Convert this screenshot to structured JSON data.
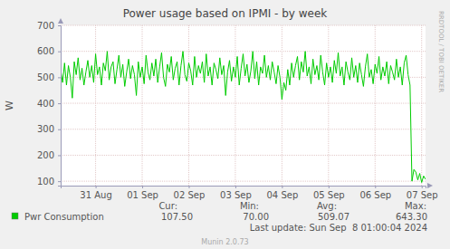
{
  "chart_data": {
    "type": "line",
    "title": "Power usage based on IPMI - by week",
    "y_label": "W",
    "grid": true,
    "ylim": [
      83,
      700
    ],
    "yticks": [
      100,
      200,
      300,
      400,
      500,
      600,
      700
    ],
    "categories": [
      null,
      null,
      null,
      null,
      null,
      null,
      null,
      null,
      null,
      null,
      null,
      null,
      null,
      null,
      null,
      null,
      null,
      null,
      "31 Aug",
      null,
      null,
      null,
      null,
      null,
      null,
      null,
      null,
      null,
      null,
      null,
      null,
      null,
      null,
      null,
      null,
      null,
      null,
      null,
      null,
      null,
      null,
      null,
      "01 Sep",
      null,
      null,
      null,
      null,
      null,
      null,
      null,
      null,
      null,
      null,
      null,
      null,
      null,
      null,
      null,
      null,
      null,
      null,
      null,
      null,
      null,
      null,
      null,
      "02 Sep",
      null,
      null,
      null,
      null,
      null,
      null,
      null,
      null,
      null,
      null,
      null,
      null,
      null,
      null,
      null,
      null,
      null,
      null,
      null,
      null,
      null,
      null,
      null,
      "03 Sep",
      null,
      null,
      null,
      null,
      null,
      null,
      null,
      null,
      null,
      null,
      null,
      null,
      null,
      null,
      null,
      null,
      null,
      null,
      null,
      null,
      null,
      null,
      null,
      "04 Sep",
      null,
      null,
      null,
      null,
      null,
      null,
      null,
      null,
      null,
      null,
      null,
      null,
      null,
      null,
      null,
      null,
      null,
      null,
      null,
      null,
      null,
      null,
      null,
      "05 Sep",
      null,
      null,
      null,
      null,
      null,
      null,
      null,
      null,
      null,
      null,
      null,
      null,
      null,
      null,
      null,
      null,
      null,
      null,
      null,
      null,
      null,
      null,
      null,
      "06 Sep",
      null,
      null,
      null,
      null,
      null,
      null,
      null,
      null,
      null,
      null,
      null,
      null,
      null,
      null,
      null,
      null,
      null,
      null,
      null,
      null,
      null,
      null,
      null,
      "07 Sep",
      null,
      null
    ],
    "series": [
      {
        "name": "Pwr Consumption",
        "color": "#00cc00",
        "values": [
          530,
          480,
          555,
          470,
          545,
          500,
          420,
          560,
          510,
          575,
          490,
          535,
          470,
          520,
          565,
          500,
          545,
          480,
          590,
          510,
          540,
          470,
          555,
          525,
          600,
          490,
          540,
          560,
          475,
          530,
          585,
          500,
          550,
          465,
          520,
          570,
          495,
          545,
          510,
          430,
          560,
          500,
          540,
          475,
          585,
          520,
          490,
          555,
          505,
          570,
          480,
          540,
          595,
          500,
          465,
          550,
          520,
          580,
          490,
          535,
          560,
          470,
          545,
          600,
          510,
          485,
          555,
          525,
          470,
          580,
          500,
          545,
          515,
          560,
          480,
          590,
          505,
          540,
          470,
          555,
          530,
          495,
          575,
          510,
          545,
          430,
          520,
          565,
          485,
          540,
          500,
          580,
          470,
          535,
          590,
          505,
          550,
          480,
          525,
          600,
          495,
          560,
          470,
          540,
          515,
          585,
          500,
          545,
          490,
          560,
          520,
          475,
          545,
          500,
          415,
          480,
          450,
          530,
          470,
          555,
          500,
          545,
          580,
          490,
          560,
          520,
          600,
          505,
          540,
          475,
          570,
          510,
          545,
          490,
          585,
          520,
          470,
          555,
          500,
          540,
          480,
          565,
          515,
          595,
          505,
          540,
          470,
          560,
          520,
          490,
          575,
          500,
          545,
          480,
          555,
          510,
          465,
          540,
          590,
          500,
          530,
          475,
          550,
          515,
          580,
          490,
          540,
          505,
          560,
          475,
          545,
          520,
          490,
          570,
          500,
          540,
          470,
          555,
          585,
          510,
          470,
          100,
          145,
          135,
          105,
          130,
          95,
          120,
          107.5
        ],
        "stats": {
          "labels": [
            "Cur:",
            "Min:",
            "Avg:",
            "Max:"
          ],
          "values": [
            107.5,
            70,
            509.07,
            643.3
          ],
          "value_labels": [
            "107.50",
            "70.00",
            "509.07",
            "643.30"
          ]
        }
      }
    ],
    "annotations": [
      "Last update: Sun Sep  8 01:00:04 2024",
      "Munin 2.0.73",
      "RRDTOOL / TOBI OETIKER"
    ]
  }
}
